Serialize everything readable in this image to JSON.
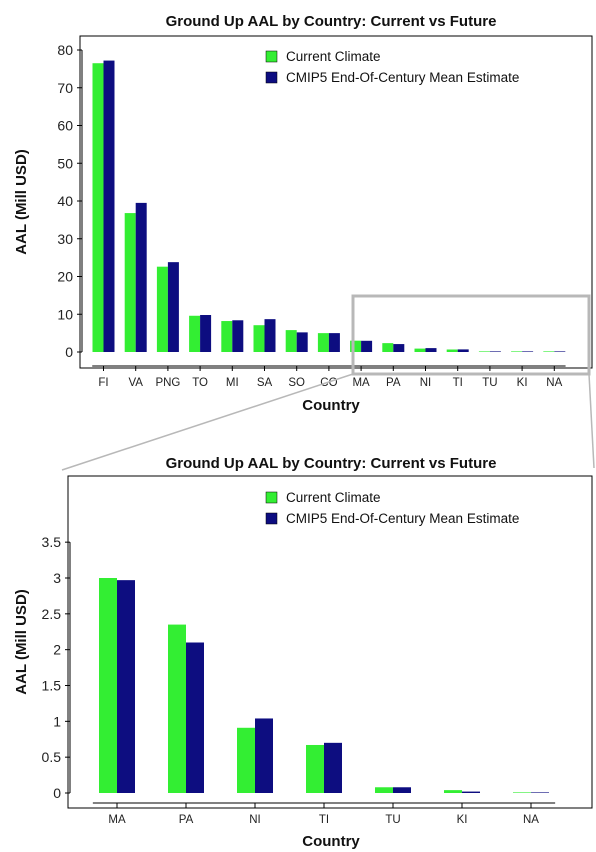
{
  "chart_data": [
    {
      "type": "bar",
      "title": "Ground Up AAL by Country: Current vs Future",
      "xlabel": "Country",
      "ylabel": "AAL (Mill USD)",
      "ylim": [
        0,
        80
      ],
      "yticks": [
        0,
        10,
        20,
        30,
        40,
        50,
        60,
        70,
        80
      ],
      "legend_position": "top-right",
      "categories": [
        "FI",
        "VA",
        "PNG",
        "TO",
        "MI",
        "SA",
        "SO",
        "CO",
        "MA",
        "PA",
        "NI",
        "TI",
        "TU",
        "KI",
        "NA"
      ],
      "series": [
        {
          "name": "Current Climate",
          "color": "#33ee33",
          "values": [
            76.5,
            36.8,
            22.6,
            9.6,
            8.2,
            7.1,
            5.8,
            5.0,
            3.0,
            2.35,
            0.9,
            0.66,
            0.08,
            0.04,
            0.005
          ]
        },
        {
          "name": "CMIP5 End-Of-Century Mean Estimate",
          "color": "#0d0d80",
          "values": [
            77.2,
            39.5,
            23.8,
            9.8,
            8.4,
            8.7,
            5.2,
            5.0,
            2.97,
            2.1,
            1.03,
            0.69,
            0.08,
            0.02,
            0.005
          ]
        }
      ]
    },
    {
      "type": "bar",
      "title": "Ground Up AAL by Country: Current vs Future",
      "xlabel": "Country",
      "ylabel": "AAL (Mill USD)",
      "ylim": [
        0,
        3.6
      ],
      "yticks": [
        0,
        0.5,
        1,
        1.5,
        2,
        2.5,
        3,
        3.5
      ],
      "legend_position": "top-right",
      "categories": [
        "MA",
        "PA",
        "NI",
        "TI",
        "TU",
        "KI",
        "NA"
      ],
      "series": [
        {
          "name": "Current Climate",
          "color": "#33ee33",
          "values": [
            3.0,
            2.35,
            0.91,
            0.67,
            0.08,
            0.04,
            0.005
          ]
        },
        {
          "name": "CMIP5 End-Of-Century Mean Estimate",
          "color": "#0d0d80",
          "values": [
            2.97,
            2.1,
            1.04,
            0.7,
            0.08,
            0.02,
            0.005
          ]
        }
      ]
    }
  ]
}
